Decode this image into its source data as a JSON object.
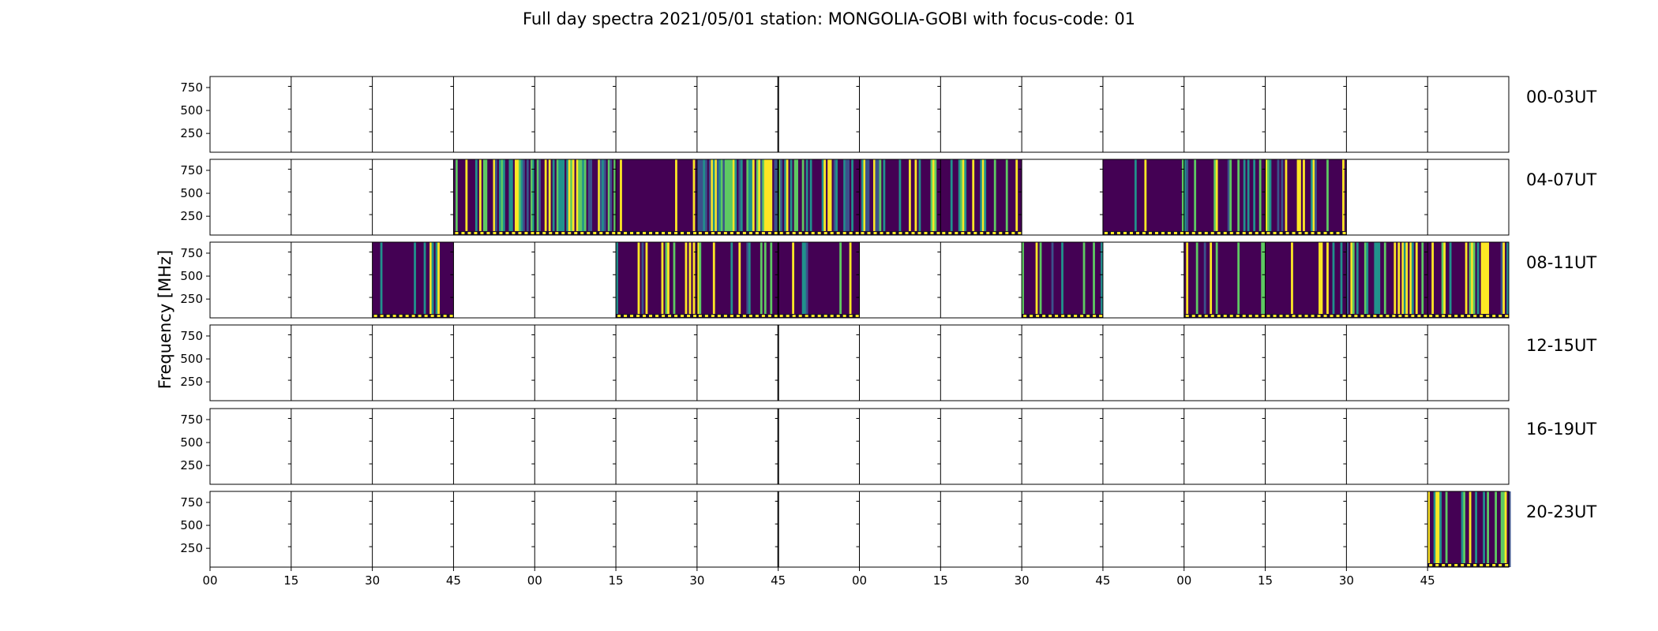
{
  "chart_data": {
    "type": "heatmap",
    "title": "Full day spectra 2021/05/01 station: MONGOLIA-GOBI with focus-code: 01",
    "ylabel": "Frequency [MHz]",
    "y_ticks": [
      "750",
      "500",
      "250"
    ],
    "x_ticks": [
      "00",
      "15",
      "30",
      "45",
      "00",
      "15",
      "30",
      "45",
      "00",
      "15",
      "30",
      "45",
      "00",
      "15",
      "30",
      "45"
    ],
    "ylim": [
      45,
      870
    ],
    "colormap": [
      "#440154",
      "#3b528b",
      "#21918c",
      "#5ec962",
      "#fde725"
    ],
    "rows": [
      {
        "label": "00-03UT",
        "segments": []
      },
      {
        "label": "04-07UT",
        "segments": [
          [
            3,
            0.55
          ],
          [
            4,
            0.55
          ],
          [
            5,
            0.05
          ],
          [
            6,
            0.7
          ],
          [
            7,
            0.45
          ],
          [
            8,
            0.4
          ],
          [
            9,
            0.3
          ],
          [
            11,
            0.08
          ],
          [
            12,
            0.15
          ],
          [
            13,
            0.25
          ]
        ]
      },
      {
        "label": "08-11UT",
        "segments": [
          [
            2,
            0.2
          ],
          [
            5,
            0.3
          ],
          [
            6,
            0.25
          ],
          [
            7,
            0.2
          ],
          [
            10,
            0.3
          ],
          [
            12,
            0.2
          ],
          [
            13,
            0.15
          ],
          [
            14,
            0.4
          ],
          [
            15,
            0.25
          ]
        ]
      },
      {
        "label": "12-15UT",
        "segments": []
      },
      {
        "label": "16-19UT",
        "segments": []
      },
      {
        "label": "20-23UT",
        "segments": [
          [
            15,
            0.35
          ]
        ]
      }
    ]
  }
}
